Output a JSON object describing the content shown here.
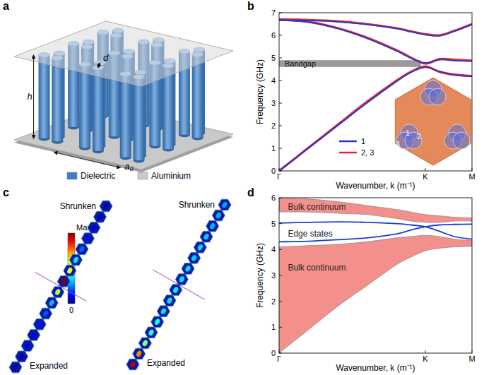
{
  "panel_labels": [
    "a",
    "b",
    "c",
    "d"
  ],
  "panel_a": {
    "dimension_labels": {
      "height": "h",
      "diameter": "d",
      "lattice": "a₀"
    },
    "legend": [
      {
        "label": "Dielectric",
        "color": "#3f7fc4"
      },
      {
        "label": "Aluminium",
        "color": "#c9c9c9"
      }
    ]
  },
  "chart_data": [
    {
      "type": "line",
      "x": [
        0,
        0.2,
        0.4,
        0.6,
        0.8,
        0.9,
        1.0,
        1.1,
        1.2,
        1.32
      ],
      "xlim": [
        0,
        1.32
      ],
      "xticks": [
        {
          "value": 0,
          "label": "Γ"
        },
        {
          "value": 1,
          "label": "K"
        },
        {
          "value": 1.32,
          "label": "M"
        }
      ],
      "ylim": [
        0,
        7
      ],
      "yticks": [
        0,
        1,
        2,
        3,
        4,
        5,
        6,
        7
      ],
      "x_label": "Wavenumber, k (m⁻¹)",
      "y_label": "Frequency (GHz)",
      "legend": "center",
      "series": [
        {
          "name": "1",
          "color": "#1a3cd6",
          "values": [
            0,
            1.0,
            2.0,
            3.0,
            3.94,
            4.35,
            4.58,
            4.4,
            4.24,
            4.18
          ]
        },
        {
          "name": "1",
          "color": "#1a3cd6",
          "values": [
            6.68,
            6.58,
            6.3,
            5.87,
            5.32,
            5.0,
            4.78,
            4.92,
            4.88,
            4.85
          ]
        },
        {
          "name": "1",
          "color": "#1a3cd6",
          "values": [
            6.68,
            6.66,
            6.6,
            6.48,
            6.3,
            6.16,
            6.03,
            5.98,
            6.18,
            6.48
          ]
        },
        {
          "name": "2, 3",
          "color": "#e8262a",
          "values": [
            0,
            1.02,
            2.04,
            3.05,
            3.98,
            4.38,
            4.62,
            4.38,
            4.26,
            4.2
          ]
        },
        {
          "name": "2, 3",
          "color": "#e8262a",
          "values": [
            6.7,
            6.6,
            6.32,
            5.9,
            5.35,
            5.02,
            4.75,
            4.95,
            4.92,
            4.88
          ]
        },
        {
          "name": "2, 3",
          "color": "#e8262a",
          "values": [
            6.7,
            6.68,
            6.62,
            6.5,
            6.32,
            6.18,
            6.05,
            6.0,
            6.2,
            6.5
          ]
        }
      ],
      "bandgap": {
        "label": "Bandgap",
        "ylow": 4.6,
        "yhigh": 4.9,
        "xend": 0.97,
        "color": "#9a9a9a"
      },
      "inset": {
        "labels": [
          "1",
          "2",
          "3"
        ]
      }
    },
    {
      "type": "line",
      "x": [
        0,
        0.2,
        0.4,
        0.6,
        0.8,
        0.9,
        1.0,
        1.1,
        1.2,
        1.32
      ],
      "xlim": [
        0,
        1.32
      ],
      "xticks": [
        {
          "value": 0,
          "label": "Γ"
        },
        {
          "value": 1,
          "label": "K"
        },
        {
          "value": 1.32,
          "label": "M"
        }
      ],
      "ylim": [
        0,
        6
      ],
      "yticks": [
        0,
        1,
        2,
        3,
        4,
        5,
        6
      ],
      "x_label": "Wavenumber, k (m⁻¹)",
      "y_label": "Frequency (GHz)",
      "series": [
        {
          "type": "area",
          "color": "#f3908c",
          "lower": [
            0,
            0.9,
            1.8,
            2.6,
            3.4,
            3.7,
            3.95,
            4.05,
            4.1,
            4.12
          ],
          "upper": [
            4.1,
            4.15,
            4.2,
            4.3,
            4.45,
            4.5,
            4.55,
            4.5,
            4.4,
            4.35
          ]
        },
        {
          "type": "area",
          "color": "#f3908c",
          "lower": [
            5.45,
            5.45,
            5.4,
            5.35,
            5.2,
            5.1,
            5.05,
            5.05,
            5.1,
            5.1
          ],
          "upper": [
            6.0,
            5.95,
            5.85,
            5.7,
            5.55,
            5.45,
            5.35,
            5.3,
            5.25,
            5.22
          ]
        },
        {
          "color": "#1a3cd6",
          "values": [
            4.3,
            4.32,
            4.38,
            4.45,
            4.6,
            4.75,
            4.88,
            4.95,
            4.97,
            4.98
          ]
        },
        {
          "color": "#1a3cd6",
          "values": [
            5.02,
            5.05,
            5.07,
            5.05,
            5.0,
            4.95,
            4.88,
            4.7,
            4.5,
            4.4
          ]
        }
      ],
      "annotations": [
        {
          "text": "Bulk continuum",
          "x": 0.06,
          "y": 5.65
        },
        {
          "text": "Edge states",
          "x": 0.06,
          "y": 4.62
        },
        {
          "text": "Bulk continuum",
          "x": 0.06,
          "y": 3.3
        }
      ]
    }
  ],
  "panel_c": {
    "colorbar": {
      "min": 0,
      "max_label": "Max"
    },
    "strips": [
      {
        "top_label": "Shrunken",
        "bottom_label": "Expanded",
        "intensity": [
          0.05,
          0.06,
          0.08,
          0.1,
          0.14,
          0.2,
          0.3,
          0.55,
          1.0,
          0.6,
          0.35,
          0.22,
          0.14,
          0.09,
          0.06,
          0.04
        ]
      },
      {
        "top_label": "Shrunken",
        "bottom_label": "Expanded",
        "intensity": [
          0.95,
          0.75,
          0.5,
          0.4,
          0.38,
          0.35,
          0.35,
          0.36,
          0.35,
          0.34,
          0.33,
          0.33,
          0.32,
          0.3,
          0.3,
          0.28
        ]
      }
    ]
  }
}
